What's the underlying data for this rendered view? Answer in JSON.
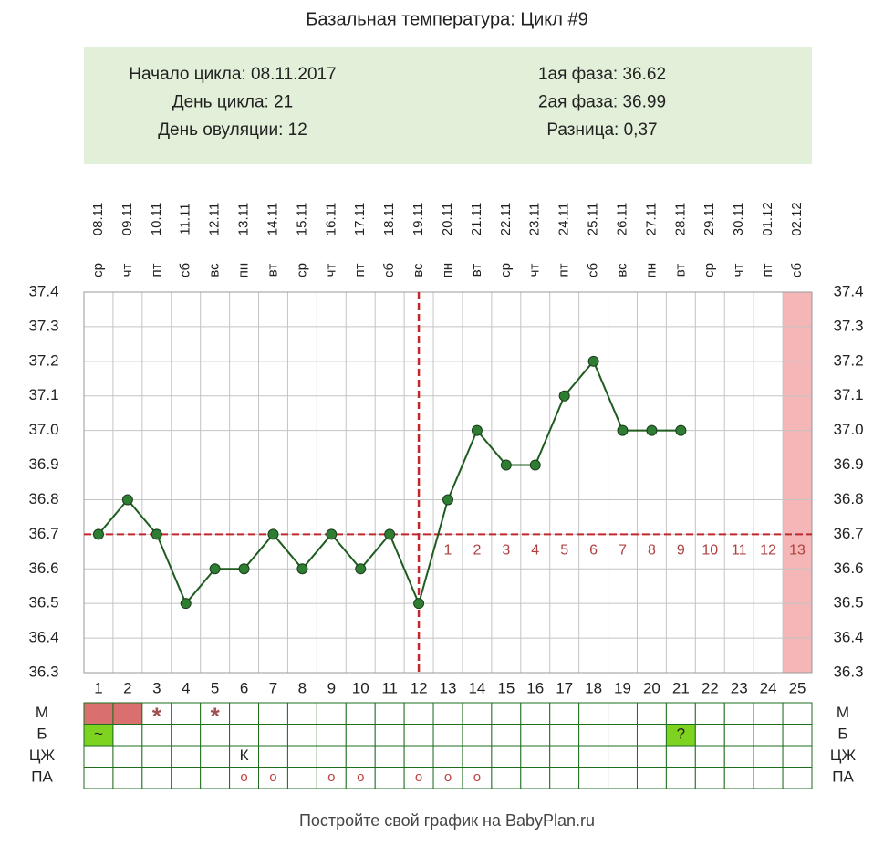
{
  "chart_data": {
    "type": "line",
    "title": "Базальная температура: Цикл #9",
    "info_left": [
      "Начало цикла: 08.11.2017",
      "День цикла: 21",
      "День овуляции: 12"
    ],
    "info_right": [
      "1ая фаза: 36.62",
      "2ая фаза: 36.99",
      "Разница: 0,37"
    ],
    "x": [
      1,
      2,
      3,
      4,
      5,
      6,
      7,
      8,
      9,
      10,
      11,
      12,
      13,
      14,
      15,
      16,
      17,
      18,
      19,
      20,
      21,
      22,
      23,
      24,
      25
    ],
    "dates": [
      "08.11",
      "09.11",
      "10.11",
      "11.11",
      "12.11",
      "13.11",
      "14.11",
      "15.11",
      "16.11",
      "17.11",
      "18.11",
      "19.11",
      "20.11",
      "21.11",
      "22.11",
      "23.11",
      "24.11",
      "25.11",
      "26.11",
      "27.11",
      "28.11",
      "29.11",
      "30.11",
      "01.12",
      "02.12"
    ],
    "weekdays": [
      "ср",
      "чт",
      "пт",
      "сб",
      "вс",
      "пн",
      "вт",
      "ср",
      "чт",
      "пт",
      "сб",
      "вс",
      "пн",
      "вт",
      "ср",
      "чт",
      "пт",
      "сб",
      "вс",
      "пн",
      "вт",
      "ср",
      "чт",
      "пт",
      "сб"
    ],
    "values": [
      36.7,
      36.8,
      36.7,
      36.5,
      36.6,
      36.6,
      36.7,
      36.6,
      36.7,
      36.6,
      36.7,
      36.5,
      36.8,
      37.0,
      36.9,
      36.9,
      37.1,
      37.2,
      37.0,
      37.0,
      37.0,
      null,
      null,
      null,
      null
    ],
    "color": "#1f5c1f",
    "marker_color": "#2e7d32",
    "ylim": [
      36.3,
      37.4
    ],
    "yticks": [
      36.3,
      36.4,
      36.5,
      36.6,
      36.7,
      36.8,
      36.9,
      {
        "value": 37.0,
        "label": "37.0"
      },
      37.1,
      37.2,
      37.3,
      37.4
    ],
    "grid": true,
    "coverline": 36.7,
    "ovulation_day": 12,
    "reference_color": "#c0282d",
    "luteal_days": [
      null,
      null,
      null,
      null,
      null,
      null,
      null,
      null,
      null,
      null,
      null,
      null,
      1,
      2,
      3,
      4,
      5,
      6,
      7,
      8,
      9,
      10,
      11,
      12,
      13
    ],
    "highlight_day": 25,
    "highlight_color": "#f4b6b6",
    "table_rows": [
      {
        "label": "М",
        "cells": [
          null,
          null,
          "*",
          null,
          "*",
          null,
          null,
          null,
          null,
          null,
          null,
          null,
          null,
          null,
          null,
          null,
          null,
          null,
          null,
          null,
          null,
          null,
          null,
          null,
          null
        ],
        "fills": [
          "#d9706f",
          "#d9706f",
          null,
          null,
          null,
          null,
          null,
          null,
          null,
          null,
          null,
          null,
          null,
          null,
          null,
          null,
          null,
          null,
          null,
          null,
          null,
          null,
          null,
          null,
          null
        ]
      },
      {
        "label": "Б",
        "cells": [
          "~",
          null,
          null,
          null,
          null,
          null,
          null,
          null,
          null,
          null,
          null,
          null,
          null,
          null,
          null,
          null,
          null,
          null,
          null,
          null,
          "?",
          null,
          null,
          null,
          null
        ],
        "fills": [
          "#7ed321",
          null,
          null,
          null,
          null,
          null,
          null,
          null,
          null,
          null,
          null,
          null,
          null,
          null,
          null,
          null,
          null,
          null,
          null,
          null,
          "#7ed321",
          null,
          null,
          null,
          null
        ]
      },
      {
        "label": "ЦЖ",
        "cells": [
          null,
          null,
          null,
          null,
          null,
          "К",
          null,
          null,
          null,
          null,
          null,
          null,
          null,
          null,
          null,
          null,
          null,
          null,
          null,
          null,
          null,
          null,
          null,
          null,
          null
        ],
        "fills": [
          null,
          null,
          null,
          null,
          null,
          null,
          null,
          null,
          null,
          null,
          null,
          null,
          null,
          null,
          null,
          null,
          null,
          null,
          null,
          null,
          null,
          null,
          null,
          null,
          null
        ]
      },
      {
        "label": "ПА",
        "cells": [
          null,
          null,
          null,
          null,
          null,
          "o",
          "o",
          null,
          "o",
          "o",
          null,
          "o",
          "o",
          "o",
          null,
          null,
          null,
          null,
          null,
          null,
          null,
          null,
          null,
          null,
          null
        ],
        "fills": [
          null,
          null,
          null,
          null,
          null,
          null,
          null,
          null,
          null,
          null,
          null,
          null,
          null,
          null,
          null,
          null,
          null,
          null,
          null,
          null,
          null,
          null,
          null,
          null,
          null
        ]
      }
    ],
    "footer": "Постройте свой график на BabyPlan.ru"
  }
}
